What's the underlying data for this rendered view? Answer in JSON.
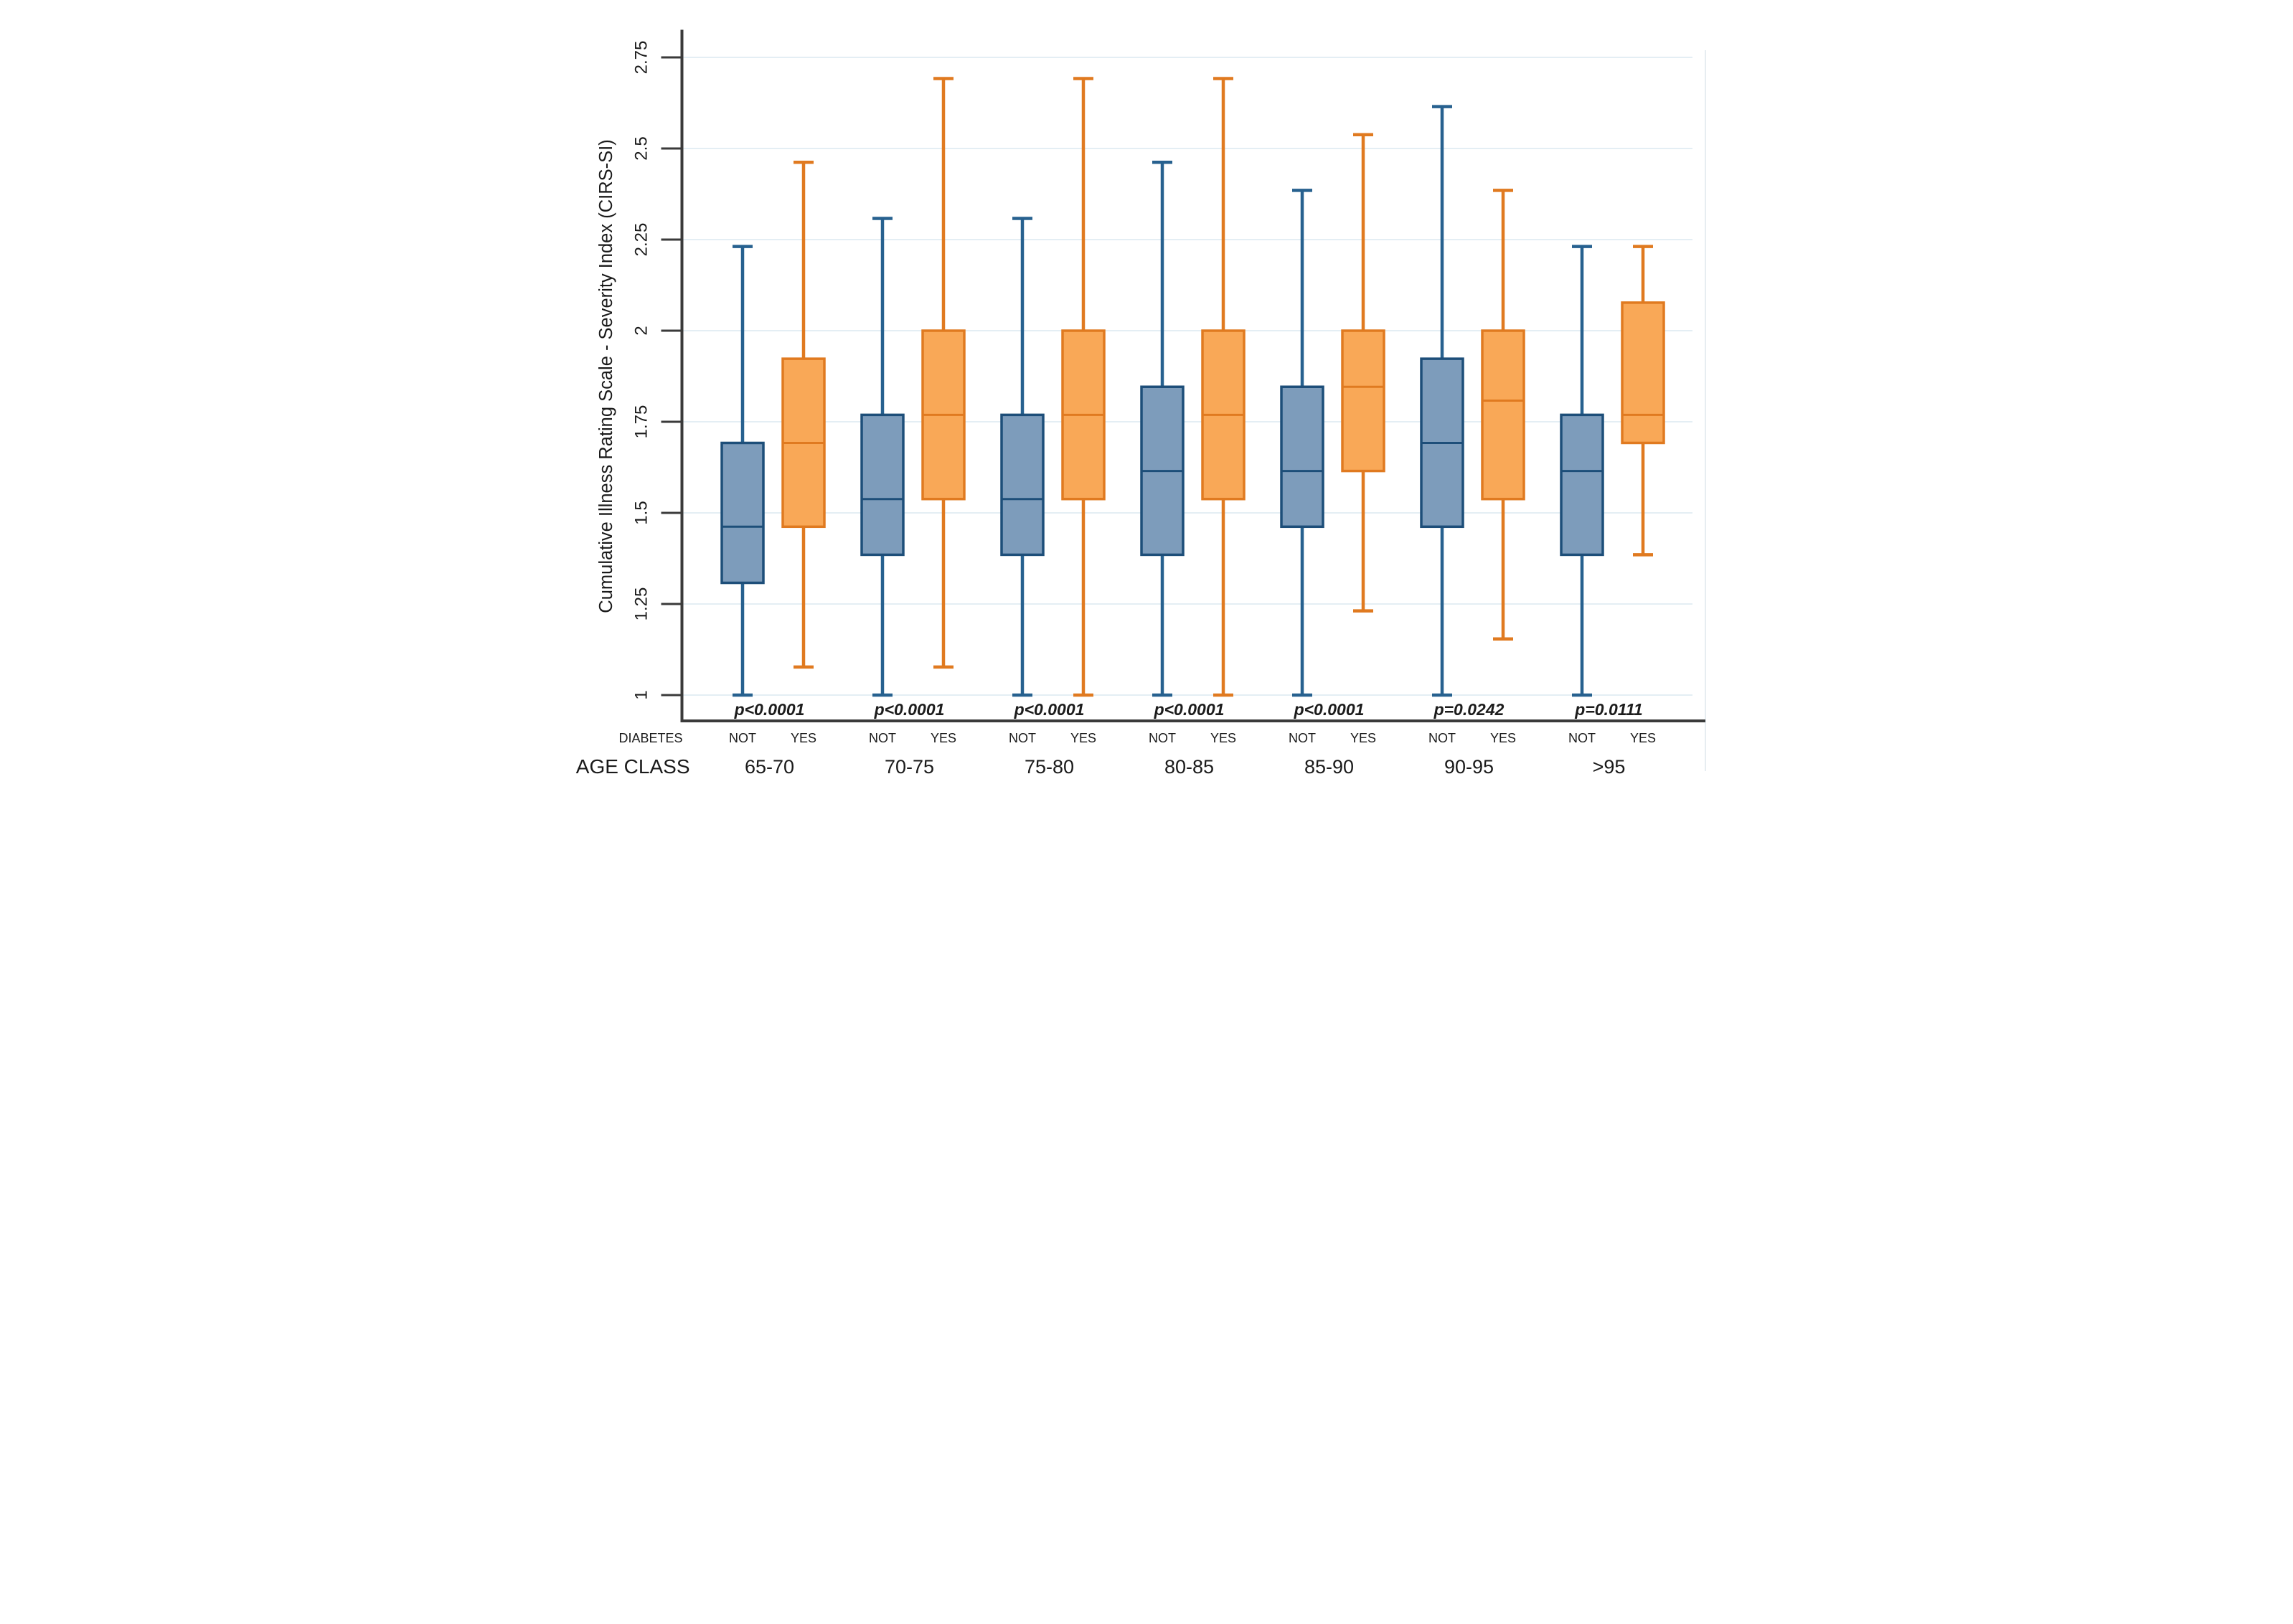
{
  "chart_data": {
    "type": "boxplot",
    "title": "",
    "ylabel": "Cumulative Illness Rating Scale - Severity Index (CIRS-SI)",
    "xlabel": "",
    "ylim": [
      1,
      2.75
    ],
    "yticks": [
      {
        "value": 1,
        "label": "1"
      },
      {
        "value": 1.25,
        "label": "1.25"
      },
      {
        "value": 1.5,
        "label": "1.5"
      },
      {
        "value": 1.75,
        "label": "1.75"
      },
      {
        "value": 2,
        "label": "2"
      },
      {
        "value": 2.25,
        "label": "2.25"
      },
      {
        "value": 2.5,
        "label": "2.5"
      },
      {
        "value": 2.75,
        "label": "2.75"
      }
    ],
    "grid": true,
    "legend_position": "none",
    "row_labels": {
      "diabetes": "DIABETES",
      "age_class": "AGE CLASS"
    },
    "series": [
      {
        "key": "not",
        "label": "NOT",
        "fill": "#7d9cbb",
        "stroke": "#1d4e79",
        "whisker": "#27618f"
      },
      {
        "key": "yes",
        "label": "YES",
        "fill": "#f9a857",
        "stroke": "#e07a20",
        "whisker": "#e07a20"
      }
    ],
    "groups": [
      {
        "age_class": "65-70",
        "p_label": "p<0.0001",
        "not": {
          "low": 1.0,
          "q1": 1.308,
          "median": 1.462,
          "q3": 1.692,
          "high": 2.231
        },
        "yes": {
          "low": 1.077,
          "q1": 1.462,
          "median": 1.692,
          "q3": 1.923,
          "high": 2.462
        }
      },
      {
        "age_class": "70-75",
        "p_label": "p<0.0001",
        "not": {
          "low": 1.0,
          "q1": 1.385,
          "median": 1.538,
          "q3": 1.769,
          "high": 2.308
        },
        "yes": {
          "low": 1.077,
          "q1": 1.538,
          "median": 1.769,
          "q3": 2.0,
          "high": 2.692
        }
      },
      {
        "age_class": "75-80",
        "p_label": "p<0.0001",
        "not": {
          "low": 1.0,
          "q1": 1.385,
          "median": 1.538,
          "q3": 1.769,
          "high": 2.308
        },
        "yes": {
          "low": 1.0,
          "q1": 1.538,
          "median": 1.769,
          "q3": 2.0,
          "high": 2.692
        }
      },
      {
        "age_class": "80-85",
        "p_label": "p<0.0001",
        "not": {
          "low": 1.0,
          "q1": 1.385,
          "median": 1.615,
          "q3": 1.846,
          "high": 2.462
        },
        "yes": {
          "low": 1.0,
          "q1": 1.538,
          "median": 1.769,
          "q3": 2.0,
          "high": 2.692
        }
      },
      {
        "age_class": "85-90",
        "p_label": "p<0.0001",
        "not": {
          "low": 1.0,
          "q1": 1.462,
          "median": 1.615,
          "q3": 1.846,
          "high": 2.385
        },
        "yes": {
          "low": 1.231,
          "q1": 1.615,
          "median": 1.846,
          "q3": 2.0,
          "high": 2.538
        }
      },
      {
        "age_class": "90-95",
        "p_label": "p=0.0242",
        "not": {
          "low": 1.0,
          "q1": 1.462,
          "median": 1.692,
          "q3": 1.923,
          "high": 2.615
        },
        "yes": {
          "low": 1.154,
          "q1": 1.538,
          "median": 1.808,
          "q3": 2.0,
          "high": 2.385
        }
      },
      {
        "age_class": ">95",
        "p_label": "p=0.0111",
        "not": {
          "low": 1.0,
          "q1": 1.385,
          "median": 1.615,
          "q3": 1.769,
          "high": 2.231
        },
        "yes": {
          "low": 1.385,
          "q1": 1.692,
          "median": 1.769,
          "q3": 2.077,
          "high": 2.231
        }
      }
    ]
  },
  "colors": {
    "background": "#ffffff",
    "gridline": "#dce8f0",
    "axis": "#3a3a3a",
    "panel_edge": "#e7edf1",
    "text": "#1a1a1a",
    "p_text": "#1c1c1c"
  }
}
